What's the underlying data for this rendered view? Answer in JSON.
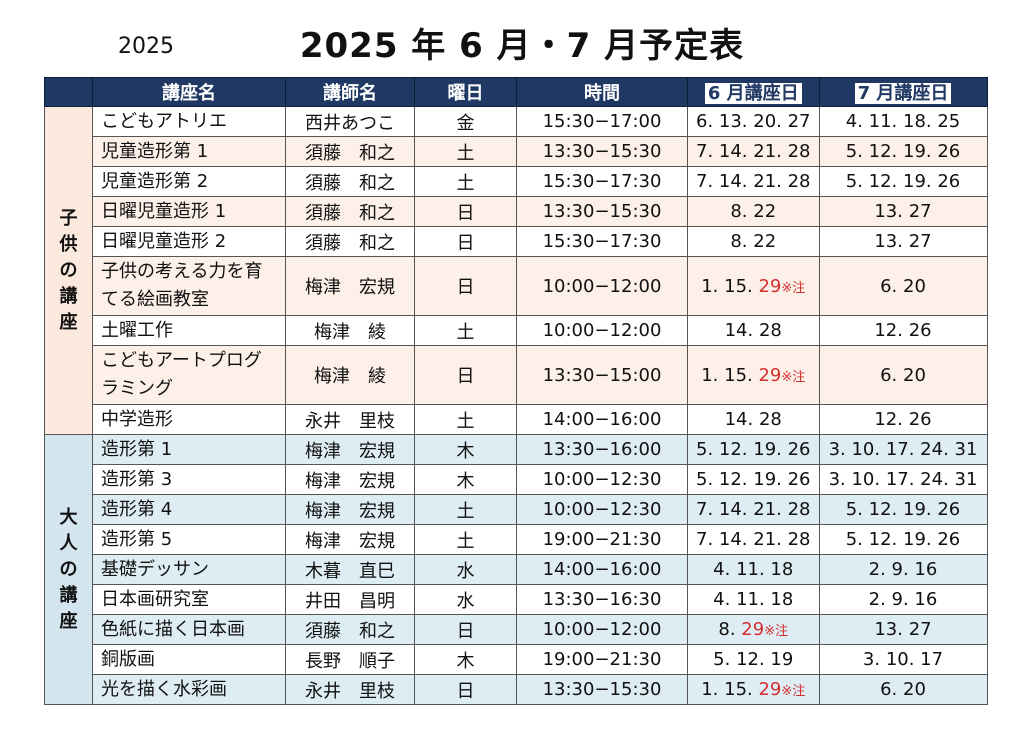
{
  "year_label": "2025",
  "title": "2025 年 6 月・7 月予定表",
  "headers": {
    "course": "講座名",
    "teacher": "講師名",
    "day": "曜日",
    "time": "時間",
    "june": "6 月講座日",
    "july": "7 月講座日"
  },
  "sections": {
    "kids": "子供の講座",
    "adults": "大人の講座"
  },
  "note_mark": "※注",
  "rows": [
    {
      "name": "こどもアトリエ",
      "teacher": "西井あつこ",
      "day": "金",
      "time": "15:30−17:00",
      "june": "6. 13. 20. 27",
      "june_red": "",
      "july": "4. 11. 18. 25"
    },
    {
      "name": "児童造形第 1",
      "teacher": "須藤　和之",
      "day": "土",
      "time": "13:30−15:30",
      "june": "7. 14. 21. 28",
      "june_red": "",
      "july": "5. 12. 19. 26"
    },
    {
      "name": "児童造形第 2",
      "teacher": "須藤　和之",
      "day": "土",
      "time": "15:30−17:30",
      "june": "7. 14. 21. 28",
      "june_red": "",
      "july": "5. 12. 19. 26"
    },
    {
      "name": "日曜児童造形 1",
      "teacher": "須藤　和之",
      "day": "日",
      "time": "13:30−15:30",
      "june": "8. 22",
      "june_red": "",
      "july": "13. 27"
    },
    {
      "name": "日曜児童造形 2",
      "teacher": "須藤　和之",
      "day": "日",
      "time": "15:30−17:30",
      "june": "8. 22",
      "june_red": "",
      "july": "13. 27"
    },
    {
      "name": "子供の考える力を育てる絵画教室",
      "teacher": "梅津　宏規",
      "day": "日",
      "time": "10:00−12:00",
      "june": "1. 15. ",
      "june_red": "29",
      "july": "6. 20"
    },
    {
      "name": "土曜工作",
      "teacher": "梅津　綾",
      "day": "土",
      "time": "10:00−12:00",
      "june": "14. 28",
      "june_red": "",
      "july": "12. 26"
    },
    {
      "name": "こどもアートプログラミング",
      "teacher": "梅津　綾",
      "day": "日",
      "time": "13:30−15:00",
      "june": "1. 15. ",
      "june_red": "29",
      "july": "6. 20"
    },
    {
      "name": "中学造形",
      "teacher": "永井　里枝",
      "day": "土",
      "time": "14:00−16:00",
      "june": "14. 28",
      "june_red": "",
      "july": "12. 26"
    },
    {
      "name": "造形第 1",
      "teacher": "梅津　宏規",
      "day": "木",
      "time": "13:30−16:00",
      "june": "5. 12. 19. 26",
      "june_red": "",
      "july": "3. 10. 17. 24. 31"
    },
    {
      "name": "造形第 3",
      "teacher": "梅津　宏規",
      "day": "木",
      "time": "10:00−12:30",
      "june": "5. 12. 19. 26",
      "june_red": "",
      "july": "3. 10. 17. 24. 31"
    },
    {
      "name": "造形第 4",
      "teacher": "梅津　宏規",
      "day": "土",
      "time": "10:00−12:30",
      "june": "7. 14. 21. 28",
      "june_red": "",
      "july": "5. 12. 19. 26"
    },
    {
      "name": "造形第 5",
      "teacher": "梅津　宏規",
      "day": "土",
      "time": "19:00−21:30",
      "june": "7. 14. 21. 28",
      "june_red": "",
      "july": "5. 12. 19. 26"
    },
    {
      "name": "基礎デッサン",
      "teacher": "木暮　直巳",
      "day": "水",
      "time": "14:00−16:00",
      "june": "4. 11. 18",
      "june_red": "",
      "july": "2. 9. 16"
    },
    {
      "name": "日本画研究室",
      "teacher": "井田　昌明",
      "day": "水",
      "time": "13:30−16:30",
      "june": "4. 11. 18",
      "june_red": "",
      "july": "2. 9. 16"
    },
    {
      "name": "色紙に描く日本画",
      "teacher": "須藤　和之",
      "day": "日",
      "time": "10:00−12:00",
      "june": "8. ",
      "june_red": "29",
      "july": "13. 27"
    },
    {
      "name": "銅版画",
      "teacher": "長野　順子",
      "day": "木",
      "time": "19:00−21:30",
      "june": "5. 12. 19",
      "june_red": "",
      "july": "3. 10. 17"
    },
    {
      "name": "光を描く水彩画",
      "teacher": "永井　里枝",
      "day": "日",
      "time": "13:30−15:30",
      "june": "1. 15. ",
      "june_red": "29",
      "july": "6. 20"
    }
  ]
}
